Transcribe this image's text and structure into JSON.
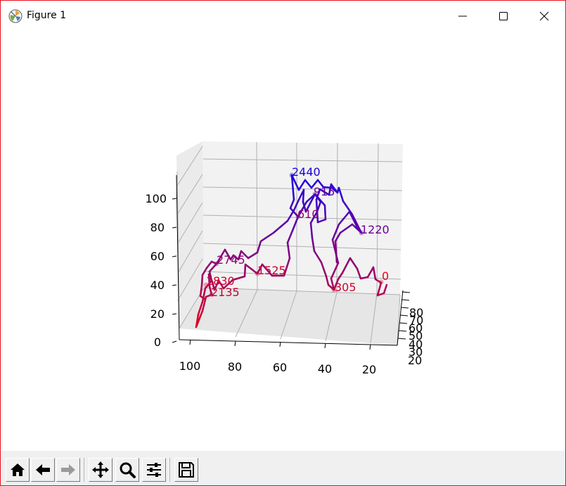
{
  "window": {
    "title": "Figure 1",
    "minimize_glyph": "minimize-icon",
    "maximize_glyph": "maximize-icon",
    "close_glyph": "close-icon",
    "border_color": "#e8111a"
  },
  "toolbar": {
    "buttons": [
      {
        "name": "home",
        "icon": "home-icon"
      },
      {
        "name": "back",
        "icon": "back-arrow-icon"
      },
      {
        "name": "forward",
        "icon": "forward-arrow-icon"
      },
      {
        "name": "pan",
        "icon": "move-icon"
      },
      {
        "name": "zoom",
        "icon": "magnifier-icon"
      },
      {
        "name": "subplots",
        "icon": "sliders-icon"
      },
      {
        "name": "save",
        "icon": "floppy-icon"
      }
    ]
  },
  "chart_data": {
    "type": "line3d",
    "x_ticks": [
      "100",
      "80",
      "60",
      "40",
      "20"
    ],
    "y_ticks": [
      "20",
      "30",
      "40",
      "50",
      "60",
      "70",
      "80"
    ],
    "z_ticks": [
      "0",
      "20",
      "40",
      "60",
      "80",
      "100"
    ],
    "color_start": "#e8001a",
    "color_end": "#1a00e8",
    "annotations": [
      {
        "label": "0",
        "color": "#e8001a"
      },
      {
        "label": "305",
        "color": "#d2002e"
      },
      {
        "label": "610",
        "color": "#8e0070"
      },
      {
        "label": "915",
        "color": "#6a0096"
      },
      {
        "label": "1220",
        "color": "#6a0096"
      },
      {
        "label": "1525",
        "color": "#d2002e"
      },
      {
        "label": "1830",
        "color": "#d2002e"
      },
      {
        "label": "2135",
        "color": "#c20038"
      },
      {
        "label": "2440",
        "color": "#1a00e8"
      },
      {
        "label": "2745",
        "color": "#8e0070"
      }
    ]
  }
}
